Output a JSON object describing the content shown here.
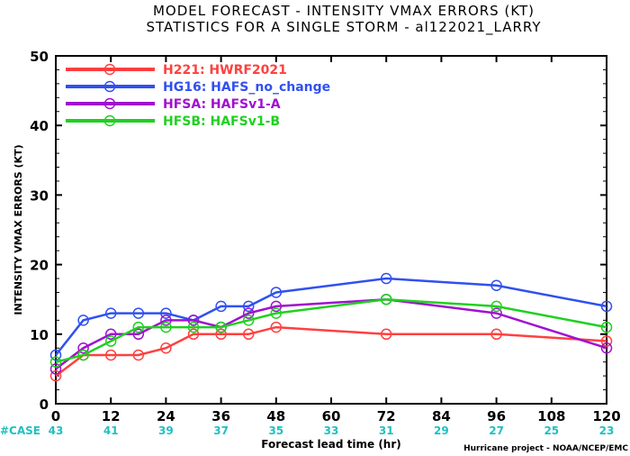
{
  "title_line1": "MODEL FORECAST - INTENSITY VMAX ERRORS (KT)",
  "title_line2": "STATISTICS FOR A SINGLE STORM - al122021_LARRY",
  "case_label": "#CASE",
  "case_color": "#20c0c0",
  "credit": "Hurricane project - NOAA/NCEP/EMC",
  "chart_data": {
    "type": "line",
    "title": "MODEL FORECAST - INTENSITY VMAX ERRORS (KT)",
    "subtitle": "STATISTICS FOR A SINGLE STORM - al122021_LARRY",
    "xlabel": "Forecast lead time (hr)",
    "ylabel": "INTENSITY VMAX ERRORS (KT)",
    "xlim": [
      0,
      120
    ],
    "ylim": [
      0,
      50
    ],
    "xticks": [
      0,
      12,
      24,
      36,
      48,
      60,
      72,
      84,
      96,
      108,
      120
    ],
    "yticks": [
      0,
      10,
      20,
      30,
      40,
      50
    ],
    "grid": false,
    "legend_position": "top-left",
    "case_x": [
      0,
      12,
      24,
      36,
      48,
      60,
      72,
      84,
      96,
      108,
      120
    ],
    "case_counts": [
      43,
      41,
      39,
      37,
      35,
      33,
      31,
      29,
      27,
      25,
      23
    ],
    "series": [
      {
        "name": "H221: HWRF2021",
        "color": "#ff4040",
        "x": [
          0,
          6,
          12,
          18,
          24,
          30,
          36,
          42,
          48,
          72,
          96,
          120
        ],
        "y": [
          4,
          7,
          7,
          7,
          8,
          10,
          10,
          10,
          11,
          10,
          10,
          9
        ]
      },
      {
        "name": "HG16: HAFS_no_change",
        "color": "#3050f0",
        "x": [
          0,
          6,
          12,
          18,
          24,
          30,
          36,
          42,
          48,
          72,
          96,
          120
        ],
        "y": [
          7,
          12,
          13,
          13,
          13,
          12,
          14,
          14,
          16,
          18,
          17,
          14
        ]
      },
      {
        "name": "HFSA: HAFSv1-A",
        "color": "#a010d0",
        "x": [
          0,
          6,
          12,
          18,
          24,
          30,
          36,
          42,
          48,
          72,
          96,
          120
        ],
        "y": [
          5,
          8,
          10,
          10,
          12,
          12,
          11,
          13,
          14,
          15,
          13,
          8
        ]
      },
      {
        "name": "HFSB: HAFSv1-B",
        "color": "#20d020",
        "x": [
          0,
          6,
          12,
          18,
          24,
          30,
          36,
          42,
          48,
          72,
          96,
          120
        ],
        "y": [
          6,
          7,
          9,
          11,
          11,
          11,
          11,
          12,
          13,
          15,
          14,
          11
        ]
      }
    ]
  }
}
